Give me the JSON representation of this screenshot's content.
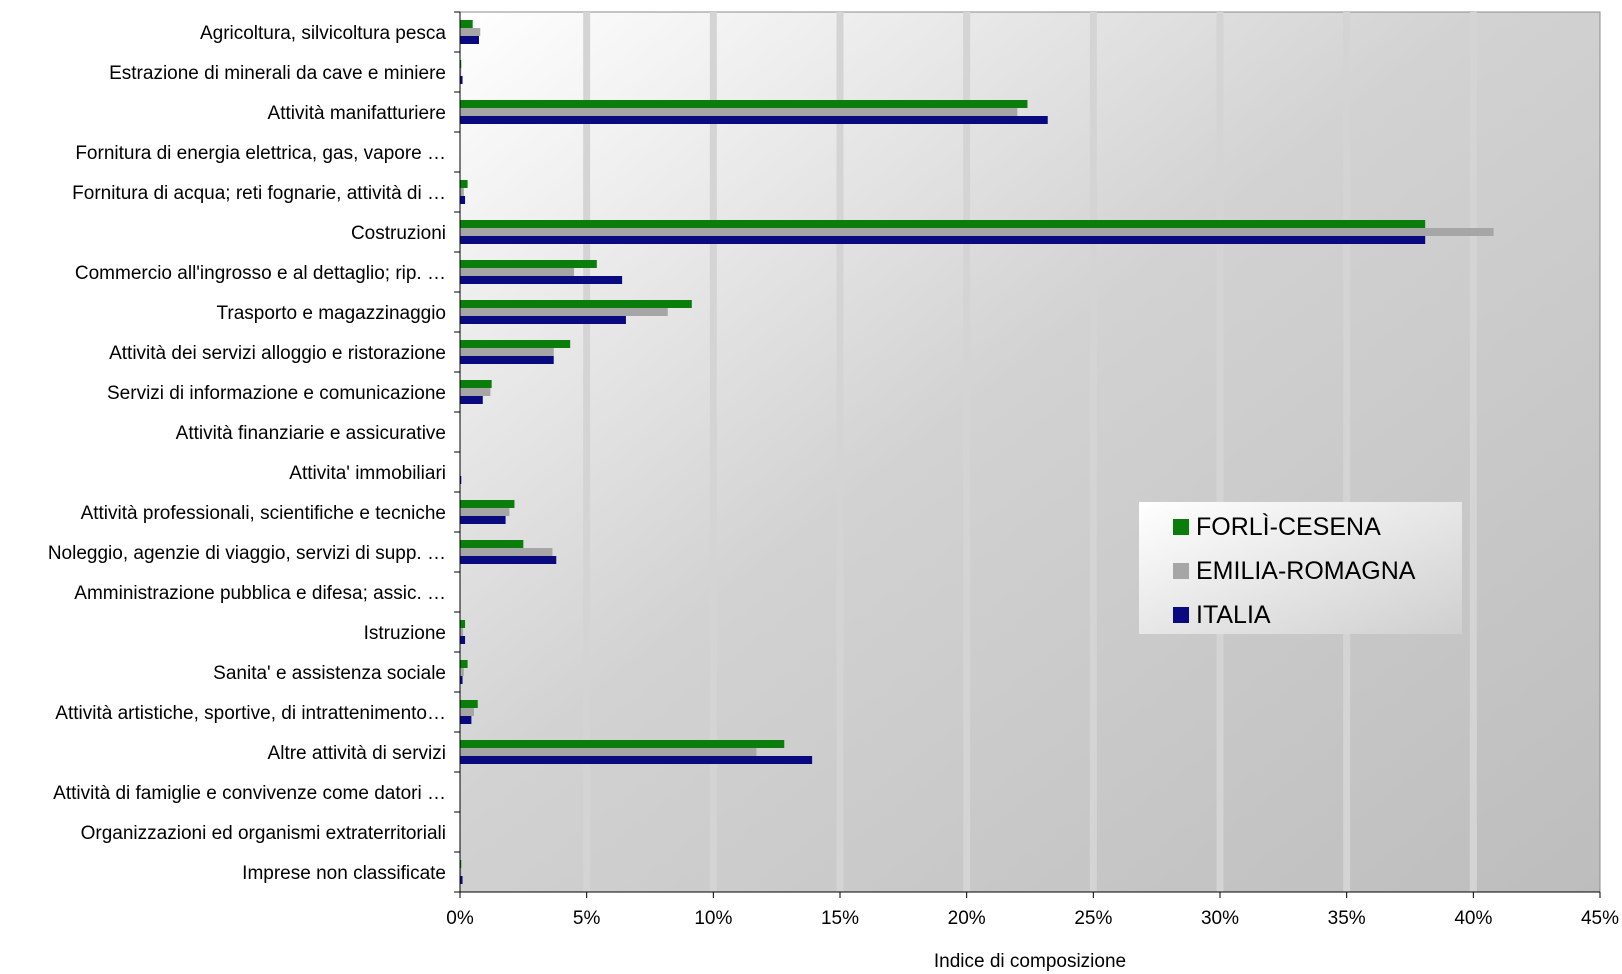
{
  "chart_data": {
    "type": "bar",
    "orientation": "horizontal",
    "xlabel": "Indice di composizione",
    "xlim": [
      0,
      45
    ],
    "x_ticks": [
      0,
      5,
      10,
      15,
      20,
      25,
      30,
      35,
      40,
      45
    ],
    "tick_suffix": "%",
    "legend_position": "center-right",
    "grid": true,
    "categories": [
      "Agricoltura, silvicoltura pesca",
      "Estrazione di minerali da cave e miniere",
      "Attività manifatturiere",
      "Fornitura di energia elettrica, gas, vapore …",
      "Fornitura di acqua; reti fognarie, attività di …",
      "Costruzioni",
      "Commercio all'ingrosso e al dettaglio; rip. …",
      "Trasporto e magazzinaggio",
      "Attività dei servizi alloggio e ristorazione",
      "Servizi di informazione e comunicazione",
      "Attività finanziarie e assicurative",
      "Attivita' immobiliari",
      "Attività professionali, scientifiche e tecniche",
      "Noleggio, agenzie di viaggio, servizi di supp. …",
      "Amministrazione pubblica e difesa; assic. …",
      "Istruzione",
      "Sanita' e assistenza sociale",
      "Attività artistiche, sportive, di intrattenimento…",
      "Altre attività di servizi",
      "Attività di famiglie e convivenze come datori …",
      "Organizzazioni ed organismi extraterritoriali",
      "Imprese non classificate"
    ],
    "series": [
      {
        "name": "FORLÌ-CESENA",
        "color": "#0a7d0a",
        "values": [
          0.5,
          0.05,
          22.4,
          0,
          0.3,
          38.1,
          5.4,
          9.15,
          4.35,
          1.25,
          0,
          0.02,
          2.15,
          2.5,
          0,
          0.2,
          0.3,
          0.7,
          12.8,
          0,
          0,
          0.05
        ]
      },
      {
        "name": "EMILIA-ROMAGNA",
        "color": "#a6a6a6",
        "values": [
          0.8,
          0.05,
          22.0,
          0.02,
          0.15,
          40.8,
          4.5,
          8.2,
          3.7,
          1.2,
          0,
          0.02,
          1.95,
          3.65,
          0,
          0.12,
          0.15,
          0.55,
          11.7,
          0,
          0,
          0.05
        ]
      },
      {
        "name": "ITALIA",
        "color": "#0a0a80",
        "values": [
          0.75,
          0.1,
          23.2,
          0.02,
          0.2,
          38.1,
          6.4,
          6.55,
          3.7,
          0.9,
          0,
          0.05,
          1.8,
          3.8,
          0,
          0.2,
          0.1,
          0.45,
          13.9,
          0,
          0,
          0.1
        ]
      }
    ]
  }
}
